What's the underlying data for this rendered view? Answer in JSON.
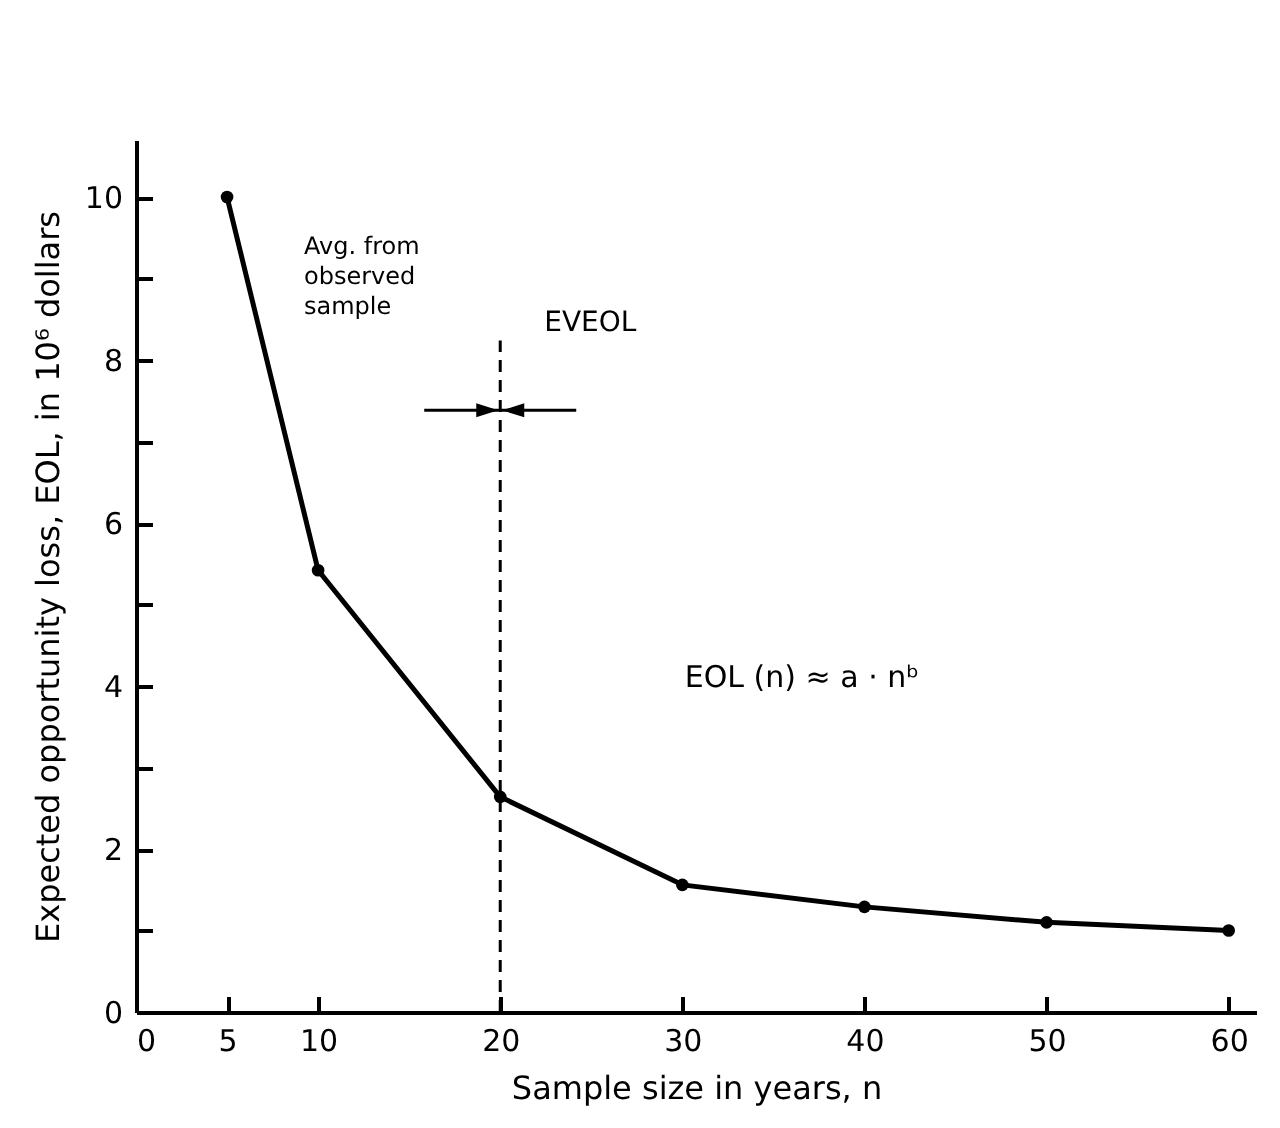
{
  "chart_data": {
    "type": "line",
    "xlabel": "Sample size in years, n",
    "ylabel": "Expected opportunity loss, EOL, in 10⁶ dollars",
    "x": [
      5,
      10,
      20,
      30,
      40,
      50,
      60
    ],
    "series": [
      {
        "color": "#000000",
        "values": [
          10.0,
          5.42,
          2.64,
          1.56,
          1.29,
          1.1,
          1.0
        ]
      }
    ],
    "xlim": [
      0,
      61.5
    ],
    "ylim": [
      0,
      10.7
    ],
    "xticks": [
      0,
      5,
      10,
      20,
      30,
      40,
      50,
      60
    ],
    "yticks": [
      0,
      {
        "value": 1,
        "label": null
      },
      2,
      {
        "value": 3,
        "label": null
      },
      4,
      {
        "value": 5,
        "label": null
      },
      6,
      {
        "value": 7,
        "label": null
      },
      8,
      {
        "value": 9,
        "label": null
      },
      10
    ],
    "marker": "circle",
    "line_style": "solid",
    "grid": false,
    "ref_lines": [
      {
        "axis": "x",
        "value": 20,
        "label": "EVEOL",
        "line_style": "dashed",
        "color": "#000000"
      }
    ],
    "annotations": [
      "Avg. from\nobserved\nsample",
      "EOL (n) ≈ a · nᵇ"
    ]
  }
}
